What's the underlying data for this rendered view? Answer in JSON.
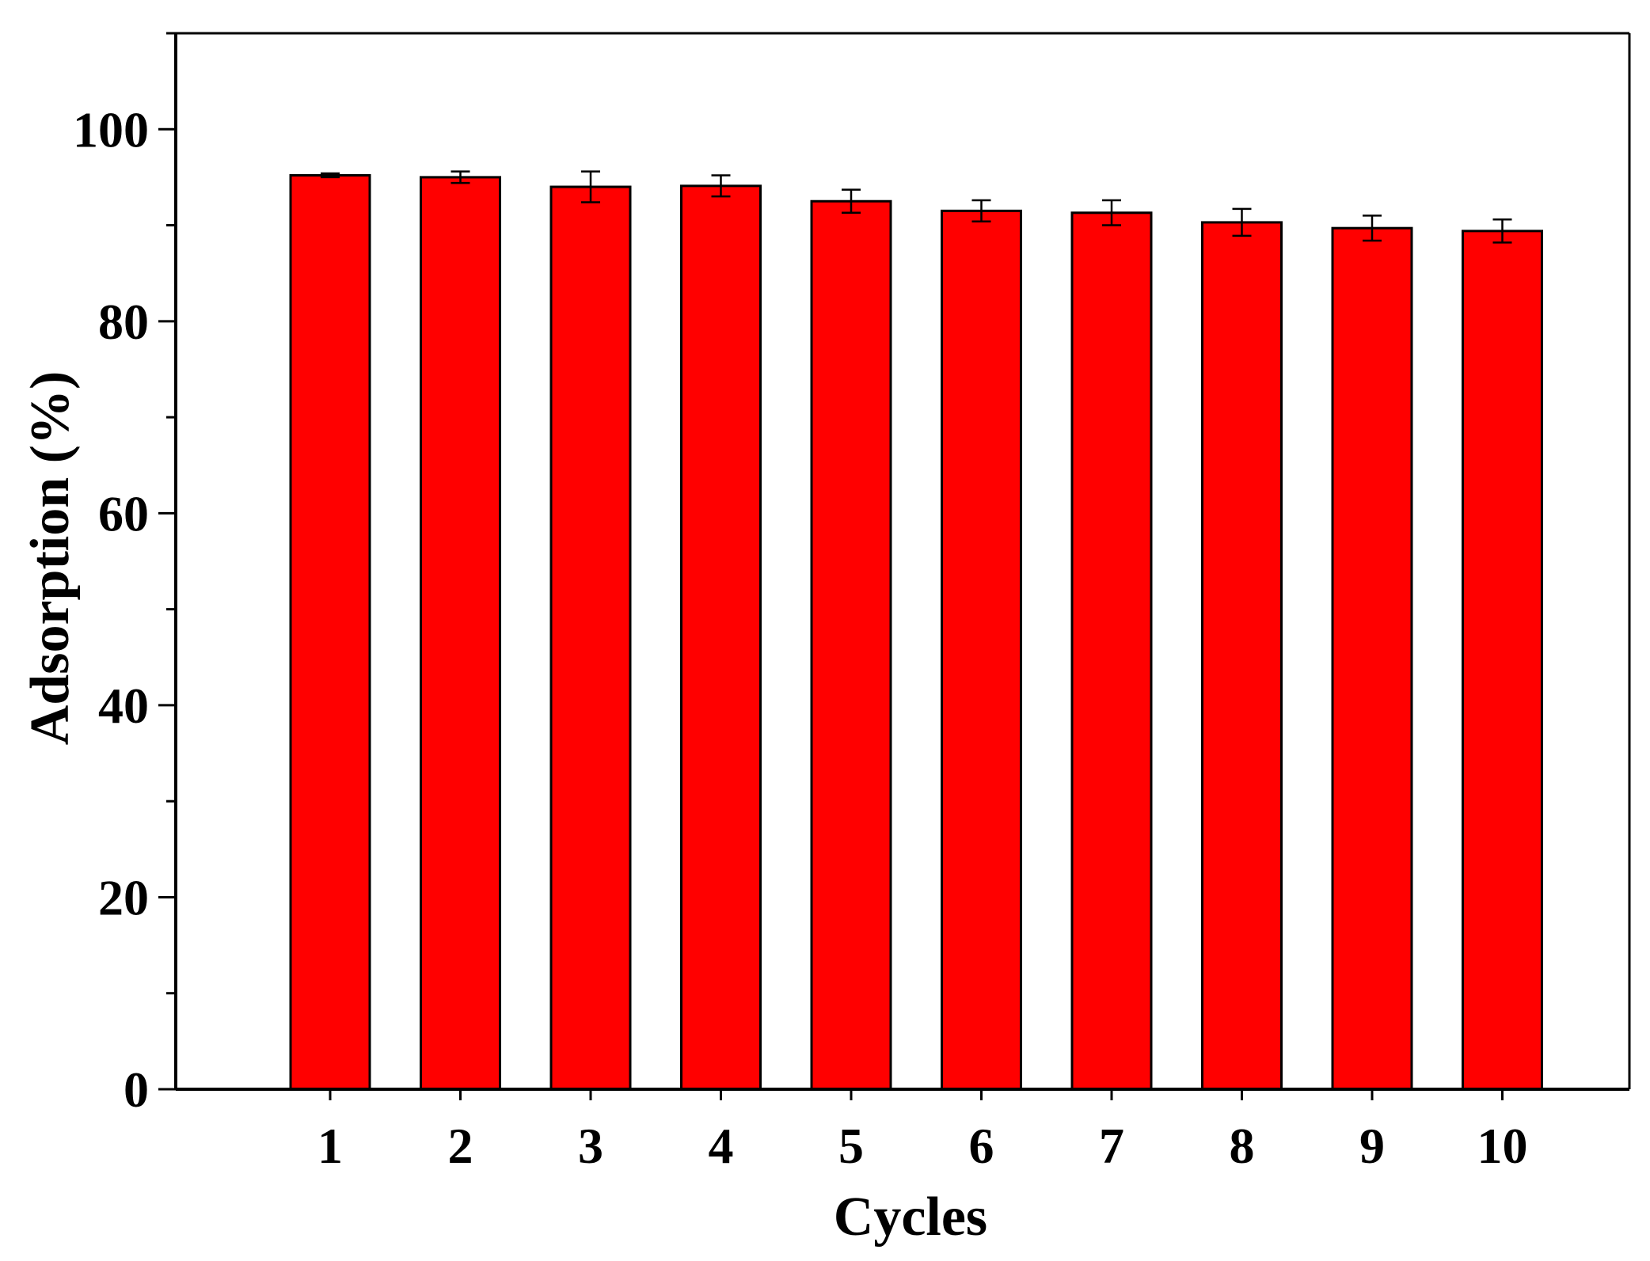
{
  "chart_data": {
    "type": "bar",
    "title": "",
    "xlabel": "Cycles",
    "ylabel": "Adsorption (%)",
    "categories": [
      "1",
      "2",
      "3",
      "4",
      "5",
      "6",
      "7",
      "8",
      "9",
      "10"
    ],
    "values": [
      95.2,
      95.0,
      94.0,
      94.1,
      92.5,
      91.5,
      91.3,
      90.3,
      89.7,
      89.4
    ],
    "errors": [
      0.2,
      0.6,
      1.6,
      1.1,
      1.2,
      1.1,
      1.3,
      1.4,
      1.3,
      1.2
    ],
    "ylim": [
      0,
      110
    ],
    "yticks": [
      0,
      20,
      40,
      60,
      80,
      100
    ],
    "y_minor_step": 10,
    "grid": false,
    "legend": "none",
    "colors": {
      "bar_fill": "#ff0000",
      "bar_stroke": "#000000",
      "axis": "#000000",
      "error_bar": "#000000"
    }
  }
}
